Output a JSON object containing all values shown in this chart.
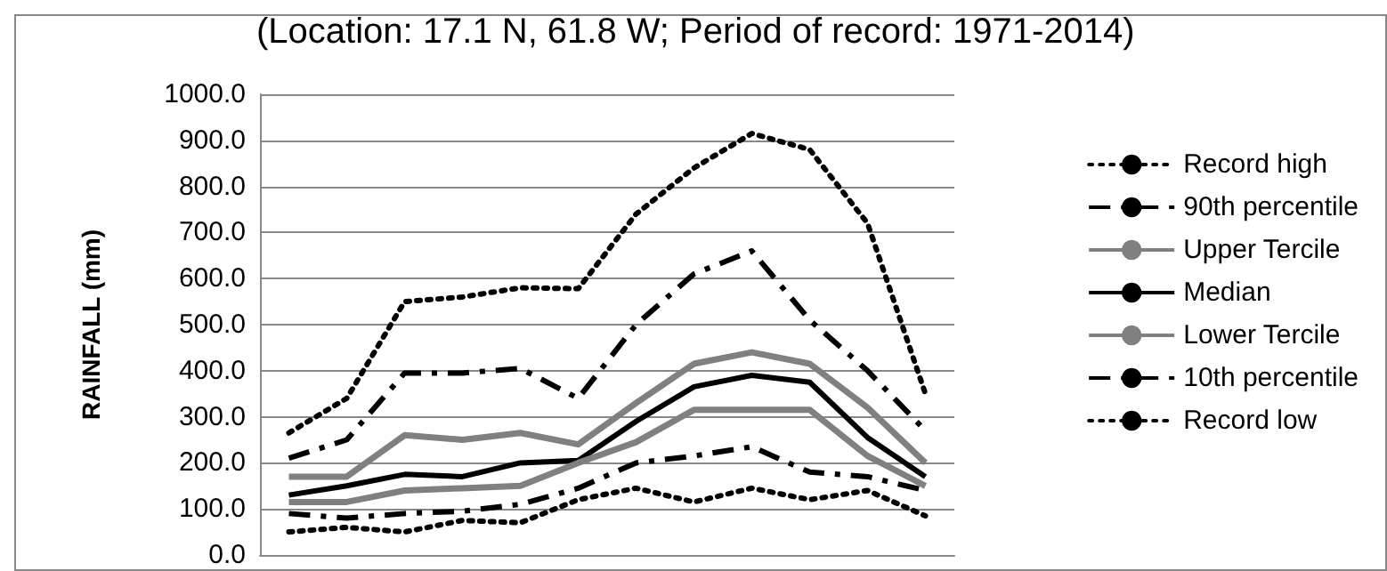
{
  "chart_data": {
    "type": "line",
    "title": "(Location: 17.1 N, 61.8 W; Period of record: 1971-2014)",
    "ylabel": "RAINFALL (mm)",
    "categories": [
      null,
      null,
      null,
      null,
      null,
      null,
      null,
      null,
      null,
      null,
      null,
      null
    ],
    "ylim": [
      0,
      1000
    ],
    "yticks": [
      {
        "value": 0,
        "label": "0.0"
      },
      {
        "value": 100,
        "label": "100.0"
      },
      {
        "value": 200,
        "label": "200.0"
      },
      {
        "value": 300,
        "label": "300.0"
      },
      {
        "value": 400,
        "label": "400.0"
      },
      {
        "value": 500,
        "label": "500.0"
      },
      {
        "value": 600,
        "label": "600.0"
      },
      {
        "value": 700,
        "label": "700.0"
      },
      {
        "value": 800,
        "label": "800.0"
      },
      {
        "value": 900,
        "label": "900.0"
      },
      {
        "value": 1000,
        "label": "1000.0"
      }
    ],
    "grid": "y",
    "legend": "right",
    "marker": "none",
    "series": [
      {
        "name": "Record high",
        "color": "#000000",
        "line_style": "dotted",
        "values": [
          265,
          340,
          550,
          560,
          580,
          578,
          740,
          840,
          915,
          880,
          720,
          350
        ]
      },
      {
        "name": "90th percentile",
        "color": "#000000",
        "line_style": "dashed",
        "values": [
          210,
          250,
          395,
          395,
          405,
          340,
          500,
          610,
          660,
          510,
          400,
          270
        ]
      },
      {
        "name": "Upper Tercile",
        "color": "#808080",
        "line_style": "solid",
        "values": [
          170,
          170,
          260,
          250,
          265,
          240,
          330,
          415,
          440,
          415,
          320,
          200
        ]
      },
      {
        "name": "Median",
        "color": "#000000",
        "line_style": "solid",
        "values": [
          130,
          150,
          175,
          170,
          200,
          205,
          290,
          365,
          390,
          375,
          255,
          170
        ]
      },
      {
        "name": "Lower Tercile",
        "color": "#808080",
        "line_style": "solid",
        "values": [
          115,
          115,
          140,
          145,
          150,
          200,
          245,
          315,
          315,
          315,
          215,
          150
        ]
      },
      {
        "name": "10th percentile",
        "color": "#000000",
        "line_style": "dashed",
        "values": [
          90,
          80,
          90,
          95,
          110,
          145,
          200,
          215,
          235,
          180,
          170,
          140
        ]
      },
      {
        "name": "Record low",
        "color": "#000000",
        "line_style": "dotted",
        "values": [
          50,
          60,
          50,
          75,
          70,
          120,
          145,
          115,
          145,
          120,
          140,
          85
        ]
      }
    ]
  }
}
